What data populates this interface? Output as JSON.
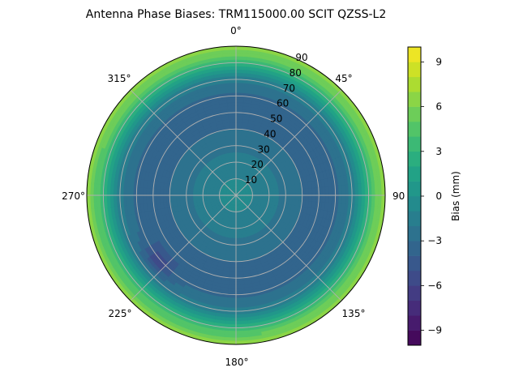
{
  "chart_data": {
    "type": "heatmap",
    "projection": "polar",
    "title": "Antenna Phase Biases: TRM115000.00    SCIT QZSS-L2",
    "theta_direction": "clockwise",
    "theta_zero": "north",
    "theta_tick_labels": [
      "0°",
      "45°",
      "90",
      "135°",
      "180°",
      "225°",
      "270°",
      "315°"
    ],
    "radial_range": [
      0,
      90
    ],
    "radial_tick_labels": [
      "10",
      "20",
      "30",
      "40",
      "50",
      "60",
      "70",
      "80",
      "90"
    ],
    "grid": true,
    "colorbar": {
      "label": "Bias (mm)",
      "range": [
        -10,
        10
      ],
      "tick_labels": [
        "−9",
        "−6",
        "−3",
        "0",
        "3",
        "6",
        "9"
      ],
      "levels": 20,
      "colormap": "viridis"
    },
    "radial_profile": {
      "zenith_angle_deg": [
        0,
        10,
        20,
        30,
        40,
        50,
        60,
        70,
        75,
        80,
        85,
        90
      ],
      "bias_mm": [
        -0.6,
        -1.0,
        -1.6,
        -2.2,
        -3.0,
        -3.6,
        -3.2,
        -1.8,
        0.5,
        2.8,
        5.0,
        6.5
      ]
    },
    "local_features": [
      {
        "description": "local minimum",
        "azimuth_deg": 230,
        "zenith_deg": 62,
        "bias_mm": -5.5
      }
    ]
  },
  "colors": {
    "grid": "#b0b0b0",
    "outline": "#000000"
  }
}
